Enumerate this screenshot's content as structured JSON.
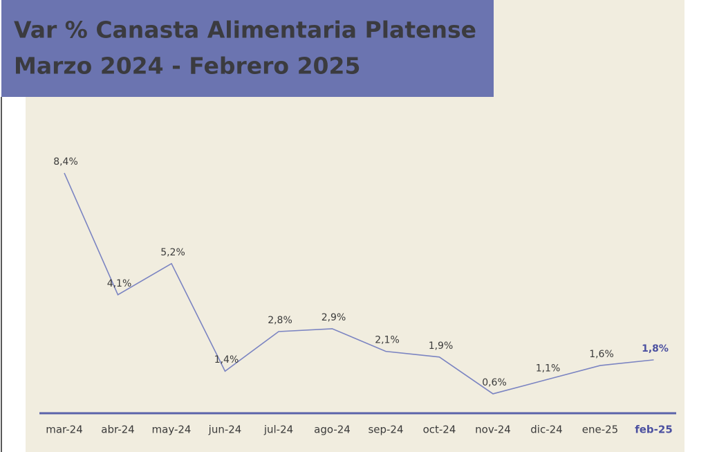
{
  "chart_data": {
    "type": "line",
    "title": "Var % Canasta Alimentaria Platense",
    "subtitle": "Marzo 2024 - Febrero 2025",
    "categories": [
      "mar-24",
      "abr-24",
      "may-24",
      "jun-24",
      "jul-24",
      "ago-24",
      "sep-24",
      "oct-24",
      "nov-24",
      "dic-24",
      "ene-25",
      "feb-25"
    ],
    "values": [
      8.4,
      4.1,
      5.2,
      1.4,
      2.8,
      2.9,
      2.1,
      1.9,
      0.6,
      1.1,
      1.6,
      1.8
    ],
    "value_labels": [
      "8,4%",
      "4,1%",
      "5,2%",
      "1,4%",
      "2,8%",
      "2,9%",
      "2,1%",
      "1,9%",
      "0,6%",
      "1,1%",
      "1,6%",
      "1,8%"
    ],
    "color": "#7b84c2",
    "axis_color": "#5a62aa",
    "highlight_color": "#4b50a0",
    "ylim": [
      0,
      9
    ]
  }
}
